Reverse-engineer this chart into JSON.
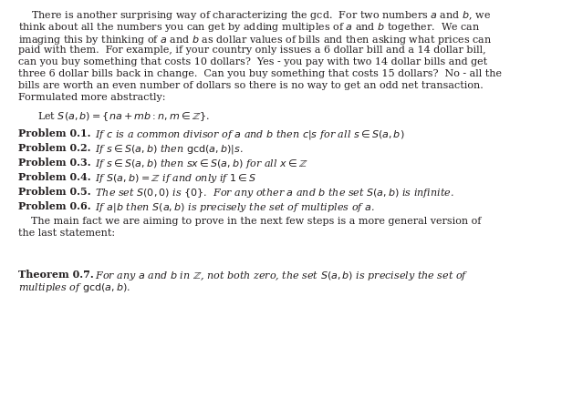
{
  "bg_color": "#ffffff",
  "text_color": "#231f20",
  "fig_width": 6.16,
  "fig_height": 4.48,
  "dpi": 100,
  "lines_p1": [
    "    There is another surprising way of characterizing the gcd.  For two numbers $a$ and $b$, we",
    "think about all the numbers you can get by adding multiples of $a$ and $b$ together.  We can",
    "imaging this by thinking of $a$ and $b$ as dollar values of bills and then asking what prices can",
    "paid with them.  For example, if your country only issues a 6 dollar bill and a 14 dollar bill,",
    "can you buy something that costs 10 dollars?  Yes - you pay with two 14 dollar bills and get",
    "three 6 dollar bills back in change.  Can you buy something that costs 15 dollars?  No - all the",
    "bills are worth an even number of dollars so there is no way to get an odd net transaction.",
    "Formulated more abstractly:"
  ],
  "set_def": "Let $S(a, b) = \\{na + mb : n, m \\in \\mathbb{Z}\\}$.",
  "problems": [
    [
      "Problem 0.1.",
      " If $c$ is a common divisor of $a$ and $b$ then $c|s$ for all $s \\in S(a,b)$"
    ],
    [
      "Problem 0.2.",
      " If $s \\in S(a, b)$ then $\\gcd(a, b)|s$."
    ],
    [
      "Problem 0.3.",
      " If $s \\in S(a, b)$ then $sx \\in S(a, b)$ for all $x \\in \\mathbb{Z}$"
    ],
    [
      "Problem 0.4.",
      " If $S(a,b) = \\mathbb{Z}$ if and only if $1 \\in S$"
    ],
    [
      "Problem 0.5.",
      " The set $S(0,0)$ is $\\{0\\}$.  For any other $a$ and $b$ the set $S(a, b)$ is infinite."
    ],
    [
      "Problem 0.6.",
      " If $a|b$ then $S(a, b)$ is precisely the set of multiples of $a$."
    ]
  ],
  "lines_p2": [
    "    The main fact we are aiming to prove in the next few steps is a more general version of",
    "the last statement:"
  ],
  "theorem_label": "Theorem 0.7.",
  "theorem_lines": [
    " For any $a$ and $b$ in $\\mathbb{Z}$, not both zero, the set $S(a, b)$ is precisely the set of",
    "multiples of $\\gcd(a, b)$."
  ]
}
